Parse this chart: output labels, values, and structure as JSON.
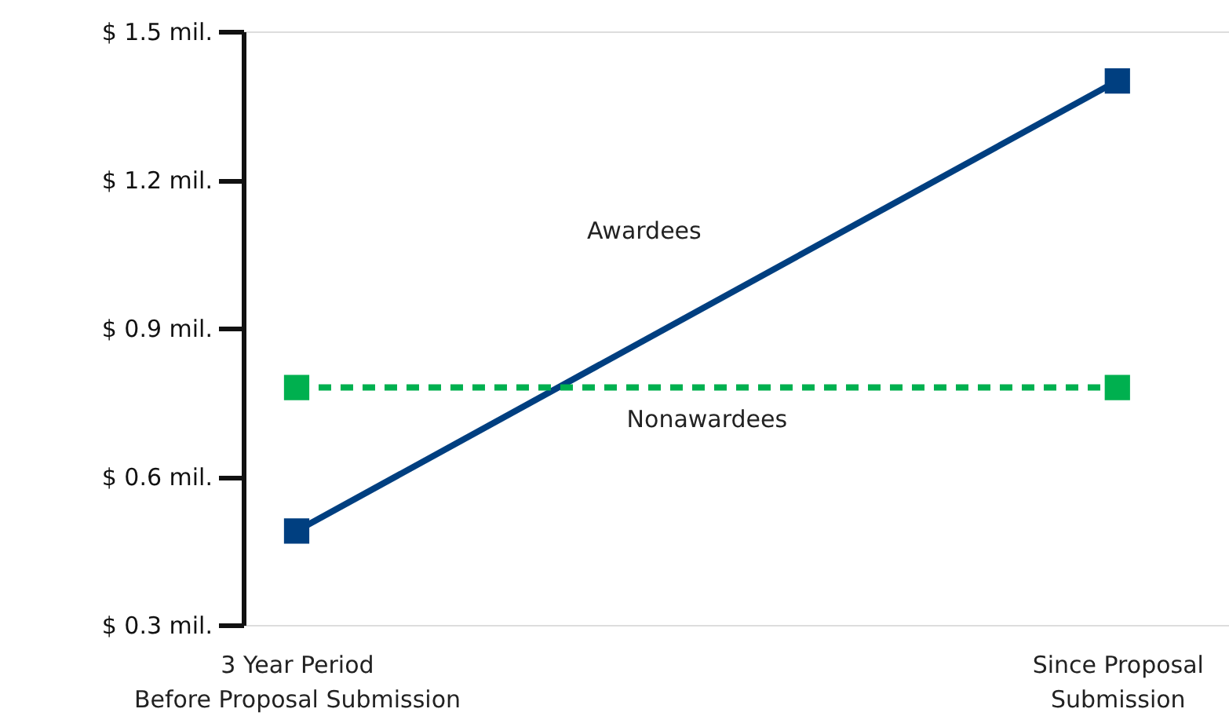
{
  "chart_data": {
    "type": "line",
    "categories": [
      "3 Year Period\nBefore Proposal Submission",
      "Since Proposal\nSubmission"
    ],
    "series": [
      {
        "name": "Awardees",
        "color": "#003f80",
        "values": [
          0.49,
          1.4
        ],
        "line_style": "solid"
      },
      {
        "name": "Nonawardees",
        "color": "#00b04f",
        "values": [
          0.78,
          0.78
        ],
        "line_style": "dashed"
      }
    ],
    "ylim": [
      0.3,
      1.5
    ],
    "yticks": [
      {
        "value": 0.3,
        "label": "$ 0.3 mil."
      },
      {
        "value": 0.6,
        "label": "$ 0.6 mil."
      },
      {
        "value": 0.9,
        "label": "$ 0.9 mil."
      },
      {
        "value": 1.2,
        "label": "$ 1.2 mil."
      },
      {
        "value": 1.5,
        "label": "$ 1.5 mil."
      }
    ],
    "marker": "square",
    "grid": false
  }
}
